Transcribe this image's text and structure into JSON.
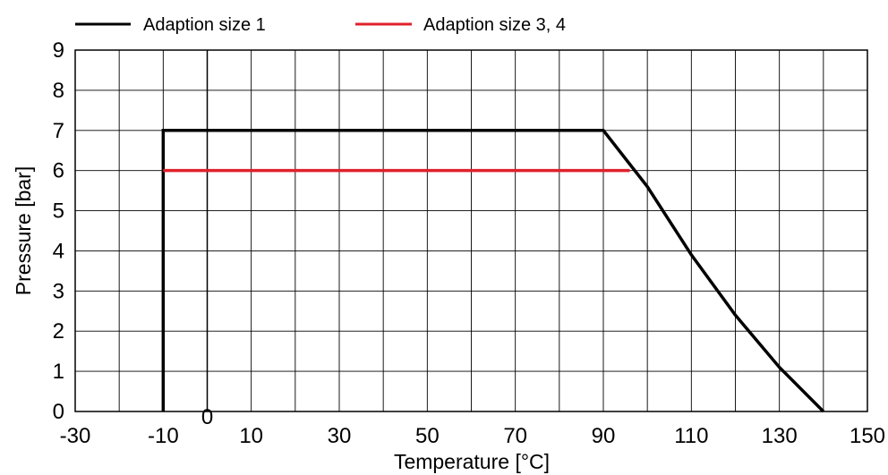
{
  "chart_data": {
    "type": "line",
    "xlabel": "Temperature [°C]",
    "ylabel": "Pressure [bar]",
    "xlim": [
      -30,
      150
    ],
    "ylim": [
      0,
      9
    ],
    "grid": true,
    "legend_placement": "top",
    "x_ticks": [
      -30,
      -10,
      0,
      10,
      30,
      50,
      70,
      90,
      110,
      130,
      150
    ],
    "x_gridlines": [
      -30,
      -20,
      -10,
      0,
      10,
      20,
      30,
      40,
      50,
      60,
      70,
      80,
      90,
      100,
      110,
      120,
      130,
      140,
      150
    ],
    "y_ticks": [
      0,
      1,
      2,
      3,
      4,
      5,
      6,
      7,
      8,
      9
    ],
    "series": [
      {
        "name": "Adaption size 1",
        "color": "#000000",
        "points": [
          [
            -10,
            0
          ],
          [
            -10,
            7
          ],
          [
            90,
            7
          ],
          [
            100,
            5.6
          ],
          [
            110,
            3.9
          ],
          [
            120,
            2.4
          ],
          [
            130,
            1.1
          ],
          [
            140,
            0
          ]
        ]
      },
      {
        "name": "Adaption size 3, 4",
        "color": "#e0212b",
        "points": [
          [
            -10,
            6
          ],
          [
            96,
            6
          ]
        ]
      }
    ]
  }
}
